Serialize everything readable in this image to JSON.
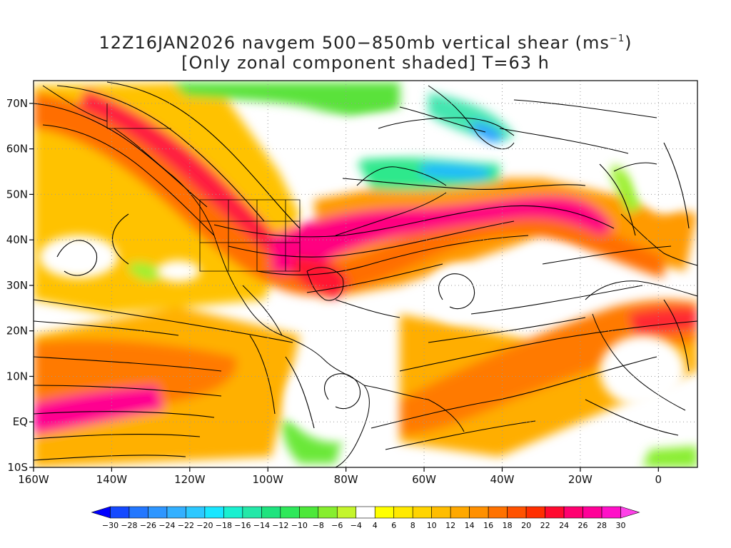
{
  "title": {
    "line1_prefix": "12Z16JAN2026 navgem 500−850mb vertical shear (ms",
    "line1_sup": "−1",
    "line1_suffix": ")",
    "line2": "[Only zonal component shaded] T=63 h"
  },
  "axes": {
    "x_ticks": [
      "160W",
      "140W",
      "120W",
      "100W",
      "80W",
      "60W",
      "40W",
      "20W",
      "0"
    ],
    "x_tick_lon": [
      -160,
      -140,
      -120,
      -100,
      -80,
      -60,
      -40,
      -20,
      0
    ],
    "y_ticks": [
      "10S",
      "EQ",
      "10N",
      "20N",
      "30N",
      "40N",
      "50N",
      "60N",
      "70N"
    ],
    "y_tick_lat": [
      -10,
      0,
      10,
      20,
      30,
      40,
      50,
      60,
      70
    ],
    "lon_range": [
      -160,
      10
    ],
    "lat_range": [
      -10,
      75
    ],
    "grid": true
  },
  "colorbar": {
    "labels": [
      "-30",
      "-28",
      "-26",
      "-24",
      "-22",
      "-20",
      "-18",
      "-16",
      "-14",
      "-12",
      "-10",
      "-8",
      "-6",
      "-4",
      "4",
      "6",
      "8",
      "10",
      "12",
      "14",
      "16",
      "18",
      "20",
      "22",
      "24",
      "26",
      "28",
      "30"
    ],
    "colors": [
      "#0000ff",
      "#1449ff",
      "#2377ff",
      "#2e96ff",
      "#33b0ff",
      "#2cc8ff",
      "#19e6ff",
      "#1af0d0",
      "#24e8a8",
      "#1ee37e",
      "#2ee85a",
      "#4de83a",
      "#86ee2e",
      "#c4f52c",
      "#ffffff",
      "#ffff00",
      "#ffe900",
      "#ffd400",
      "#ffbd00",
      "#ffa800",
      "#ff9000",
      "#ff7200",
      "#ff5200",
      "#ff2f00",
      "#ff0a30",
      "#ff0070",
      "#ff0098",
      "#ff10c8",
      "#ff40e8"
    ]
  }
}
